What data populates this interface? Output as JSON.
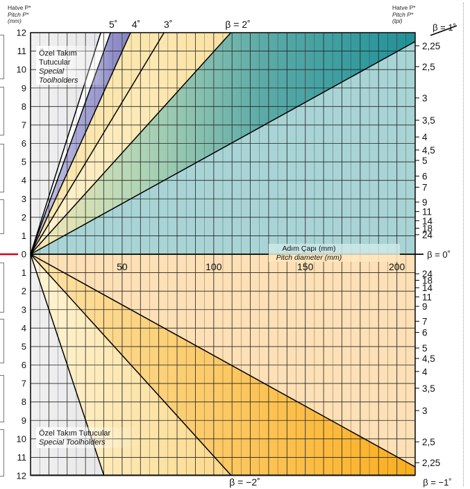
{
  "header_left": {
    "line1": "Hatve P*",
    "line2": "Pitch P*",
    "line3": "(mm)"
  },
  "header_right": {
    "line1": "Hatve P*",
    "line2": "Pitch P*",
    "line3": "(tpi)"
  },
  "region_labels": {
    "upper": {
      "tr": "Özel Takım Tutucular",
      "en": "Special Toolholders"
    },
    "lower": {
      "tr": "Özel Takım Tutucular",
      "en": "Special Toolholders"
    }
  },
  "x_axis_label": {
    "tr": "Adım Çapı (mm)",
    "en": "Pitch diameter (mm)"
  },
  "colors": {
    "teal_light": "#a9d4d6",
    "teal_dark": "#1f9197",
    "yellow_light": "#fbe6b0",
    "orange_light": "#fde0b6",
    "orange_dark": "#fbb027",
    "purple": "#8e8cc8",
    "gray_light": "#eeeeef",
    "gray_dark": "#b7b8bb",
    "red_marker": "#d8001c"
  },
  "chart_data": {
    "type": "line",
    "x_ticks": [
      "50",
      "100",
      "150",
      "200"
    ],
    "xlim": [
      0,
      210
    ],
    "ylim": [
      -12,
      12
    ],
    "left_ticks_top": [
      "12",
      "11",
      "10",
      "9",
      "8",
      "7",
      "6",
      "5",
      "4",
      "3",
      "2",
      "1"
    ],
    "left_zero": "0",
    "left_ticks_bottom": [
      "1",
      "2",
      "3",
      "4",
      "5",
      "6",
      "7",
      "8",
      "9",
      "10",
      "11",
      "12"
    ],
    "tpi_values": [
      2.25,
      2.5,
      3,
      3.5,
      4,
      4.5,
      5,
      6,
      7,
      9,
      11,
      14,
      18,
      24
    ],
    "tpi_labels": [
      "2,25",
      "2,5",
      "3",
      "3,5",
      "4",
      "4,5",
      "5",
      "6",
      "7",
      "9",
      "11",
      "14",
      "18",
      "24"
    ],
    "helix_lines_positive": [
      {
        "label": "5˚",
        "angle": 5
      },
      {
        "label": "4˚",
        "angle": 4
      },
      {
        "label": "3˚",
        "angle": 3
      },
      {
        "label": "β = 2˚",
        "angle": 2
      },
      {
        "label": "β = 1˚",
        "angle": 1
      }
    ],
    "zero_line_label": "β = 0˚",
    "helix_lines_negative": [
      {
        "label": "β = −2˚",
        "angle": -2
      },
      {
        "label": "β = −1˚",
        "angle": -1
      }
    ]
  }
}
